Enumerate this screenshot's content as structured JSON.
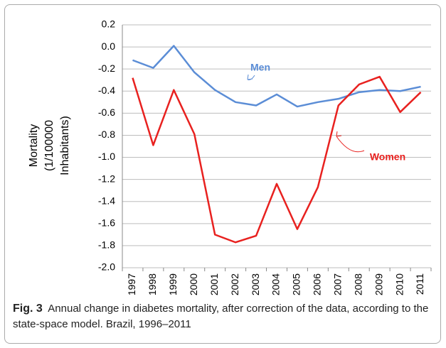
{
  "chart_data": {
    "type": "line",
    "ylabel": [
      "Mortality",
      "(1/100000",
      "Inhabitants)"
    ],
    "categories": [
      "1997",
      "1998",
      "1999",
      "2000",
      "2001",
      "2002",
      "2003",
      "2004",
      "2005",
      "2006",
      "2007",
      "2008",
      "2009",
      "2010",
      "2011"
    ],
    "series": [
      {
        "name": "Men",
        "color": "#5b8dd6",
        "values": [
          -0.12,
          -0.19,
          0.01,
          -0.23,
          -0.39,
          -0.5,
          -0.53,
          -0.43,
          -0.54,
          -0.5,
          -0.47,
          -0.41,
          -0.39,
          -0.4,
          -0.36
        ]
      },
      {
        "name": "Women",
        "color": "#e8211f",
        "values": [
          -0.28,
          -0.89,
          -0.39,
          -0.79,
          -1.7,
          -1.77,
          -1.71,
          -1.24,
          -1.65,
          -1.27,
          -0.53,
          -0.34,
          -0.27,
          -0.59,
          -0.41
        ]
      }
    ],
    "ylim": [
      -2,
      0.2
    ],
    "yticks": [
      0.2,
      {
        "value": 0,
        "label": "0.0"
      },
      -0.2,
      -0.4,
      -0.6,
      -0.8,
      {
        "value": -1,
        "label": "-1.0"
      },
      -1.2,
      -1.4,
      -1.6,
      -1.8,
      {
        "value": -2,
        "label": "-2.0"
      }
    ],
    "grid": true,
    "caption": {
      "label": "Fig. 3",
      "text": "Annual change in diabetes mortality, after correction of the data, according to the state-space model. Brazil, 1996–2011"
    }
  }
}
